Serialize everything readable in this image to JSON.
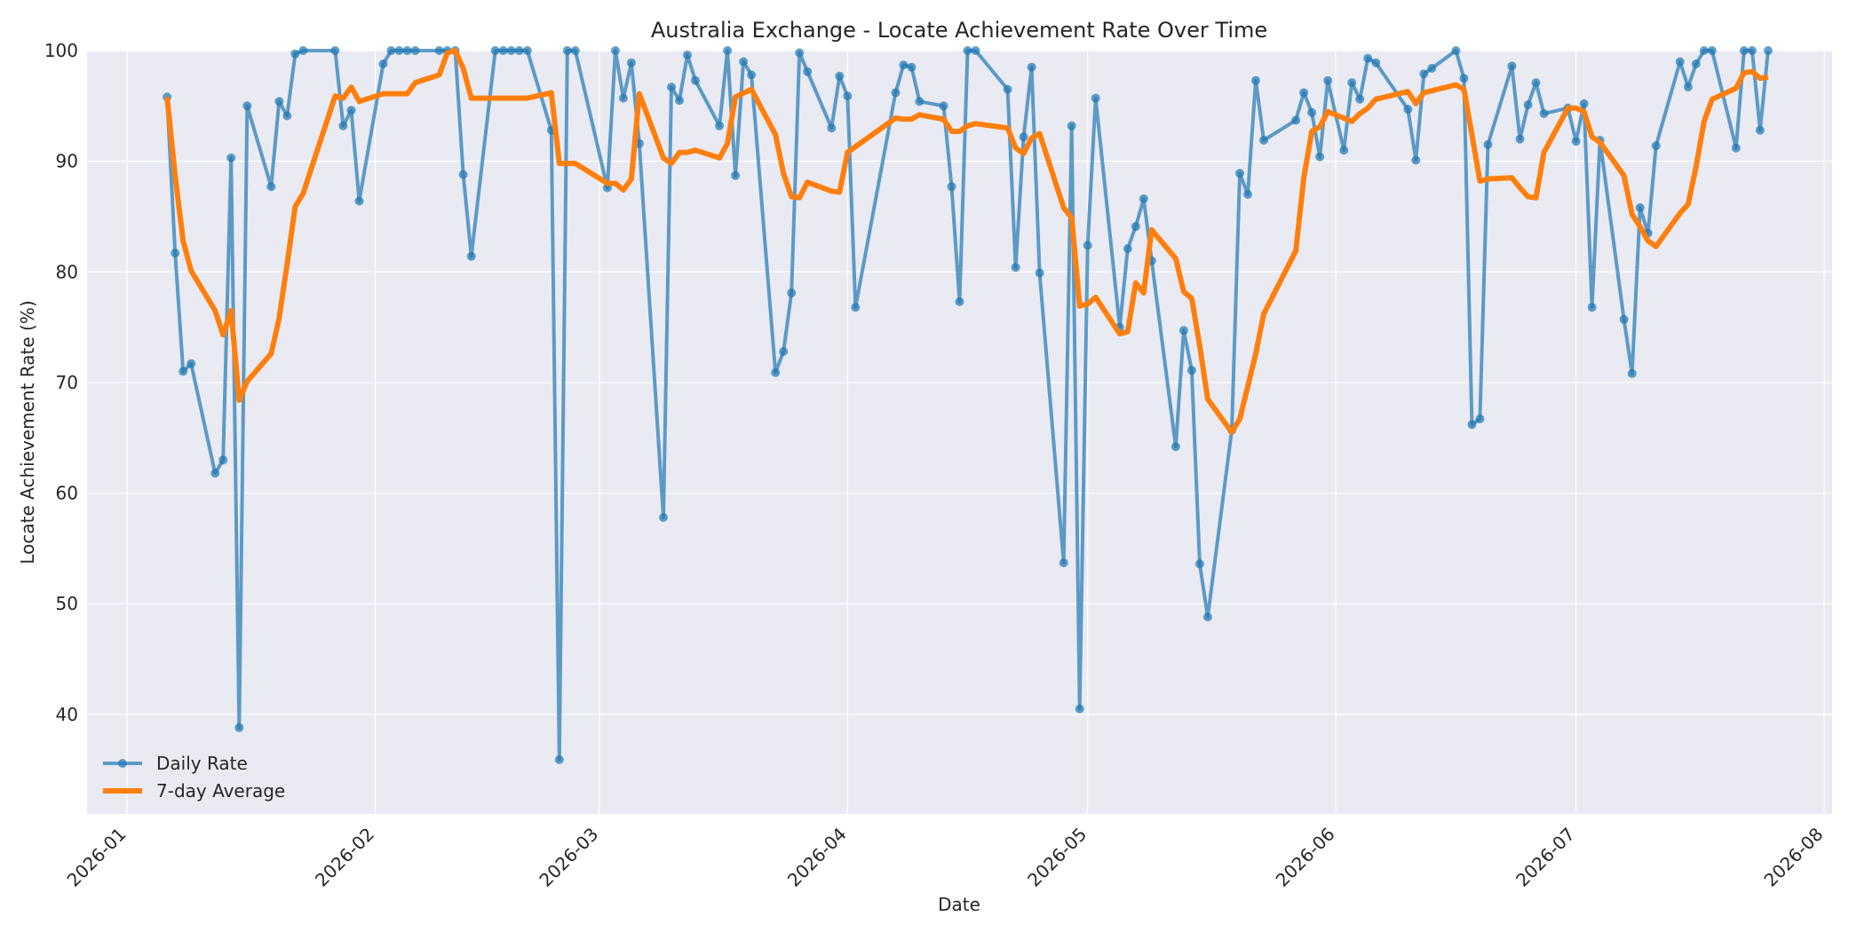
{
  "chart_data": {
    "type": "line",
    "title": "Australia Exchange - Locate Achievement Rate Over Time",
    "xlabel": "Date",
    "ylabel": "Locate Achievement Rate (%)",
    "xlim": [
      "2025-12-27",
      "2026-08-02"
    ],
    "ylim": [
      31,
      100
    ],
    "x_ticks": [
      "2026-01-01",
      "2026-02-01",
      "2026-03-01",
      "2026-04-01",
      "2026-05-01",
      "2026-06-01",
      "2026-07-01",
      "2026-08-01"
    ],
    "x_tick_labels": [
      "2026-01",
      "2026-02",
      "2026-03",
      "2026-04",
      "2026-05",
      "2026-06",
      "2026-07",
      "2026-08"
    ],
    "y_ticks": [
      40,
      50,
      60,
      70,
      80,
      90,
      100
    ],
    "y_tick_labels": [
      "40",
      "50",
      "60",
      "70",
      "80",
      "90",
      "100"
    ],
    "grid": true,
    "legend_position": "bottom-left",
    "series": [
      {
        "name": "Daily Rate",
        "color": "#1f77b4",
        "marker": "circle",
        "points": [
          [
            "2026-01-06",
            95.8
          ],
          [
            "2026-01-07",
            81.7
          ],
          [
            "2026-01-08",
            71.0
          ],
          [
            "2026-01-09",
            71.7
          ],
          [
            "2026-01-12",
            61.8
          ],
          [
            "2026-01-13",
            63.0
          ],
          [
            "2026-01-14",
            90.3
          ],
          [
            "2026-01-15",
            38.8
          ],
          [
            "2026-01-16",
            95.0
          ],
          [
            "2026-01-19",
            87.7
          ],
          [
            "2026-01-20",
            95.4
          ],
          [
            "2026-01-21",
            94.1
          ],
          [
            "2026-01-22",
            99.7
          ],
          [
            "2026-01-23",
            100.0
          ],
          [
            "2026-01-27",
            100.0
          ],
          [
            "2026-01-28",
            93.2
          ],
          [
            "2026-01-29",
            94.6
          ],
          [
            "2026-01-30",
            86.4
          ],
          [
            "2026-02-02",
            98.8
          ],
          [
            "2026-02-03",
            100.0
          ],
          [
            "2026-02-04",
            100.0
          ],
          [
            "2026-02-05",
            100.0
          ],
          [
            "2026-02-06",
            100.0
          ],
          [
            "2026-02-09",
            100.0
          ],
          [
            "2026-02-10",
            100.0
          ],
          [
            "2026-02-11",
            100.0
          ],
          [
            "2026-02-12",
            88.8
          ],
          [
            "2026-02-13",
            81.4
          ],
          [
            "2026-02-16",
            100.0
          ],
          [
            "2026-02-17",
            100.0
          ],
          [
            "2026-02-18",
            100.0
          ],
          [
            "2026-02-19",
            100.0
          ],
          [
            "2026-02-20",
            100.0
          ],
          [
            "2026-02-23",
            92.8
          ],
          [
            "2026-02-24",
            35.9
          ],
          [
            "2026-02-25",
            100.0
          ],
          [
            "2026-02-26",
            100.0
          ],
          [
            "2026-03-02",
            87.6
          ],
          [
            "2026-03-03",
            100.0
          ],
          [
            "2026-03-04",
            95.7
          ],
          [
            "2026-03-05",
            98.9
          ],
          [
            "2026-03-06",
            91.6
          ],
          [
            "2026-03-09",
            57.8
          ],
          [
            "2026-03-10",
            96.7
          ],
          [
            "2026-03-11",
            95.5
          ],
          [
            "2026-03-12",
            99.6
          ],
          [
            "2026-03-13",
            97.3
          ],
          [
            "2026-03-16",
            93.2
          ],
          [
            "2026-03-17",
            100.0
          ],
          [
            "2026-03-18",
            88.7
          ],
          [
            "2026-03-19",
            99.0
          ],
          [
            "2026-03-20",
            97.8
          ],
          [
            "2026-03-23",
            70.9
          ],
          [
            "2026-03-24",
            72.8
          ],
          [
            "2026-03-25",
            78.1
          ],
          [
            "2026-03-26",
            99.8
          ],
          [
            "2026-03-27",
            98.1
          ],
          [
            "2026-03-30",
            93.0
          ],
          [
            "2026-03-31",
            97.7
          ],
          [
            "2026-04-01",
            95.9
          ],
          [
            "2026-04-02",
            76.8
          ],
          [
            "2026-04-07",
            96.2
          ],
          [
            "2026-04-08",
            98.7
          ],
          [
            "2026-04-09",
            98.5
          ],
          [
            "2026-04-10",
            95.4
          ],
          [
            "2026-04-13",
            95.0
          ],
          [
            "2026-04-14",
            87.7
          ],
          [
            "2026-04-15",
            77.3
          ],
          [
            "2026-04-16",
            100.0
          ],
          [
            "2026-04-17",
            100.0
          ],
          [
            "2026-04-21",
            96.5
          ],
          [
            "2026-04-22",
            80.4
          ],
          [
            "2026-04-23",
            92.2
          ],
          [
            "2026-04-24",
            98.5
          ],
          [
            "2026-04-25",
            79.9
          ],
          [
            "2026-04-28",
            53.7
          ],
          [
            "2026-04-29",
            93.2
          ],
          [
            "2026-04-30",
            40.5
          ],
          [
            "2026-05-01",
            82.4
          ],
          [
            "2026-05-02",
            95.7
          ],
          [
            "2026-05-05",
            75.0
          ],
          [
            "2026-05-06",
            82.1
          ],
          [
            "2026-05-07",
            84.1
          ],
          [
            "2026-05-08",
            86.6
          ],
          [
            "2026-05-09",
            81.0
          ],
          [
            "2026-05-12",
            64.2
          ],
          [
            "2026-05-13",
            74.7
          ],
          [
            "2026-05-14",
            71.1
          ],
          [
            "2026-05-15",
            53.6
          ],
          [
            "2026-05-16",
            48.8
          ],
          [
            "2026-05-19",
            65.7
          ],
          [
            "2026-05-20",
            88.9
          ],
          [
            "2026-05-21",
            87.0
          ],
          [
            "2026-05-22",
            97.3
          ],
          [
            "2026-05-23",
            91.9
          ],
          [
            "2026-05-27",
            93.7
          ],
          [
            "2026-05-28",
            96.2
          ],
          [
            "2026-05-29",
            94.4
          ],
          [
            "2026-05-30",
            90.4
          ],
          [
            "2026-05-31",
            97.3
          ],
          [
            "2026-06-02",
            91.0
          ],
          [
            "2026-06-03",
            97.1
          ],
          [
            "2026-06-04",
            95.6
          ],
          [
            "2026-06-05",
            99.3
          ],
          [
            "2026-06-06",
            98.9
          ],
          [
            "2026-06-10",
            94.7
          ],
          [
            "2026-06-11",
            90.1
          ],
          [
            "2026-06-12",
            97.9
          ],
          [
            "2026-06-13",
            98.4
          ],
          [
            "2026-06-16",
            100.0
          ],
          [
            "2026-06-17",
            97.5
          ],
          [
            "2026-06-18",
            66.2
          ],
          [
            "2026-06-19",
            66.7
          ],
          [
            "2026-06-20",
            91.5
          ],
          [
            "2026-06-23",
            98.6
          ],
          [
            "2026-06-24",
            92.0
          ],
          [
            "2026-06-25",
            95.1
          ],
          [
            "2026-06-26",
            97.1
          ],
          [
            "2026-06-27",
            94.3
          ],
          [
            "2026-06-30",
            94.8
          ],
          [
            "2026-07-01",
            91.8
          ],
          [
            "2026-07-02",
            95.2
          ],
          [
            "2026-07-03",
            76.8
          ],
          [
            "2026-07-04",
            91.9
          ],
          [
            "2026-07-07",
            75.7
          ],
          [
            "2026-07-08",
            70.8
          ],
          [
            "2026-07-09",
            85.8
          ],
          [
            "2026-07-10",
            83.5
          ],
          [
            "2026-07-11",
            91.4
          ],
          [
            "2026-07-14",
            99.0
          ],
          [
            "2026-07-15",
            96.7
          ],
          [
            "2026-07-16",
            98.8
          ],
          [
            "2026-07-17",
            100.0
          ],
          [
            "2026-07-18",
            100.0
          ],
          [
            "2026-07-21",
            91.2
          ],
          [
            "2026-07-22",
            100.0
          ],
          [
            "2026-07-23",
            100.0
          ],
          [
            "2026-07-24",
            92.8
          ],
          [
            "2026-07-25",
            100.0
          ]
        ]
      },
      {
        "name": "7-day Average",
        "color": "#ff7f0e",
        "marker": "none",
        "points": [
          [
            "2026-01-06",
            95.8
          ],
          [
            "2026-01-07",
            88.7
          ],
          [
            "2026-01-08",
            82.8
          ],
          [
            "2026-01-09",
            80.1
          ],
          [
            "2026-01-12",
            76.5
          ],
          [
            "2026-01-13",
            74.3
          ],
          [
            "2026-01-14",
            76.5
          ],
          [
            "2026-01-15",
            68.4
          ],
          [
            "2026-01-16",
            70.1
          ],
          [
            "2026-01-19",
            72.6
          ],
          [
            "2026-01-20",
            75.8
          ],
          [
            "2026-01-21",
            80.7
          ],
          [
            "2026-01-22",
            85.9
          ],
          [
            "2026-01-23",
            87.1
          ],
          [
            "2026-01-27",
            95.9
          ],
          [
            "2026-01-28",
            95.7
          ],
          [
            "2026-01-29",
            96.7
          ],
          [
            "2026-01-30",
            95.4
          ],
          [
            "2026-02-02",
            96.1
          ],
          [
            "2026-02-05",
            96.1
          ],
          [
            "2026-02-06",
            97.1
          ],
          [
            "2026-02-09",
            97.8
          ],
          [
            "2026-02-10",
            99.8
          ],
          [
            "2026-02-11",
            100.0
          ],
          [
            "2026-02-12",
            98.4
          ],
          [
            "2026-02-13",
            95.7
          ],
          [
            "2026-02-20",
            95.7
          ],
          [
            "2026-02-23",
            96.2
          ],
          [
            "2026-02-24",
            89.8
          ],
          [
            "2026-02-25",
            89.8
          ],
          [
            "2026-02-26",
            89.8
          ],
          [
            "2026-03-02",
            88.0
          ],
          [
            "2026-03-03",
            88.0
          ],
          [
            "2026-03-04",
            87.4
          ],
          [
            "2026-03-05",
            88.4
          ],
          [
            "2026-03-06",
            96.1
          ],
          [
            "2026-03-09",
            90.3
          ],
          [
            "2026-03-10",
            89.8
          ],
          [
            "2026-03-11",
            90.8
          ],
          [
            "2026-03-12",
            90.8
          ],
          [
            "2026-03-13",
            91.0
          ],
          [
            "2026-03-16",
            90.3
          ],
          [
            "2026-03-17",
            91.6
          ],
          [
            "2026-03-18",
            95.8
          ],
          [
            "2026-03-20",
            96.5
          ],
          [
            "2026-03-23",
            92.4
          ],
          [
            "2026-03-24",
            88.9
          ],
          [
            "2026-03-25",
            86.8
          ],
          [
            "2026-03-26",
            86.7
          ],
          [
            "2026-03-27",
            88.1
          ],
          [
            "2026-03-30",
            87.3
          ],
          [
            "2026-03-31",
            87.2
          ],
          [
            "2026-04-01",
            90.8
          ],
          [
            "2026-04-07",
            93.9
          ],
          [
            "2026-04-08",
            93.8
          ],
          [
            "2026-04-09",
            93.8
          ],
          [
            "2026-04-10",
            94.2
          ],
          [
            "2026-04-13",
            93.8
          ],
          [
            "2026-04-14",
            92.7
          ],
          [
            "2026-04-15",
            92.7
          ],
          [
            "2026-04-16",
            93.2
          ],
          [
            "2026-04-17",
            93.4
          ],
          [
            "2026-04-21",
            93.0
          ],
          [
            "2026-04-22",
            91.2
          ],
          [
            "2026-04-23",
            90.7
          ],
          [
            "2026-04-24",
            92.1
          ],
          [
            "2026-04-25",
            92.5
          ],
          [
            "2026-04-28",
            85.8
          ],
          [
            "2026-04-29",
            84.9
          ],
          [
            "2026-04-30",
            76.9
          ],
          [
            "2026-05-01",
            77.1
          ],
          [
            "2026-05-02",
            77.7
          ],
          [
            "2026-05-05",
            74.4
          ],
          [
            "2026-05-06",
            74.6
          ],
          [
            "2026-05-07",
            79.0
          ],
          [
            "2026-05-08",
            78.1
          ],
          [
            "2026-05-09",
            83.8
          ],
          [
            "2026-05-12",
            81.2
          ],
          [
            "2026-05-13",
            78.2
          ],
          [
            "2026-05-14",
            77.6
          ],
          [
            "2026-05-15",
            73.3
          ],
          [
            "2026-05-16",
            68.5
          ],
          [
            "2026-05-19",
            65.5
          ],
          [
            "2026-05-20",
            66.7
          ],
          [
            "2026-05-22",
            72.6
          ],
          [
            "2026-05-23",
            76.2
          ],
          [
            "2026-05-27",
            81.9
          ],
          [
            "2026-05-28",
            88.5
          ],
          [
            "2026-05-29",
            92.7
          ],
          [
            "2026-05-30",
            93.1
          ],
          [
            "2026-05-31",
            94.5
          ],
          [
            "2026-06-03",
            93.6
          ],
          [
            "2026-06-04",
            94.3
          ],
          [
            "2026-06-05",
            94.8
          ],
          [
            "2026-06-06",
            95.6
          ],
          [
            "2026-06-10",
            96.3
          ],
          [
            "2026-06-11",
            95.2
          ],
          [
            "2026-06-12",
            96.2
          ],
          [
            "2026-06-16",
            96.9
          ],
          [
            "2026-06-17",
            96.5
          ],
          [
            "2026-06-18",
            92.4
          ],
          [
            "2026-06-19",
            88.2
          ],
          [
            "2026-06-20",
            88.4
          ],
          [
            "2026-06-23",
            88.5
          ],
          [
            "2026-06-24",
            87.6
          ],
          [
            "2026-06-25",
            86.8
          ],
          [
            "2026-06-26",
            86.7
          ],
          [
            "2026-06-27",
            90.8
          ],
          [
            "2026-06-30",
            94.8
          ],
          [
            "2026-07-01",
            94.8
          ],
          [
            "2026-07-02",
            94.5
          ],
          [
            "2026-07-03",
            92.2
          ],
          [
            "2026-07-04",
            91.7
          ],
          [
            "2026-07-07",
            88.7
          ],
          [
            "2026-07-08",
            85.2
          ],
          [
            "2026-07-09",
            84.1
          ],
          [
            "2026-07-10",
            82.8
          ],
          [
            "2026-07-11",
            82.3
          ],
          [
            "2026-07-14",
            85.3
          ],
          [
            "2026-07-15",
            86.1
          ],
          [
            "2026-07-16",
            89.5
          ],
          [
            "2026-07-17",
            93.6
          ],
          [
            "2026-07-18",
            95.6
          ],
          [
            "2026-07-21",
            96.6
          ],
          [
            "2026-07-22",
            98.0
          ],
          [
            "2026-07-23",
            98.1
          ],
          [
            "2026-07-24",
            97.5
          ],
          [
            "2026-07-25",
            97.6
          ]
        ]
      }
    ]
  }
}
